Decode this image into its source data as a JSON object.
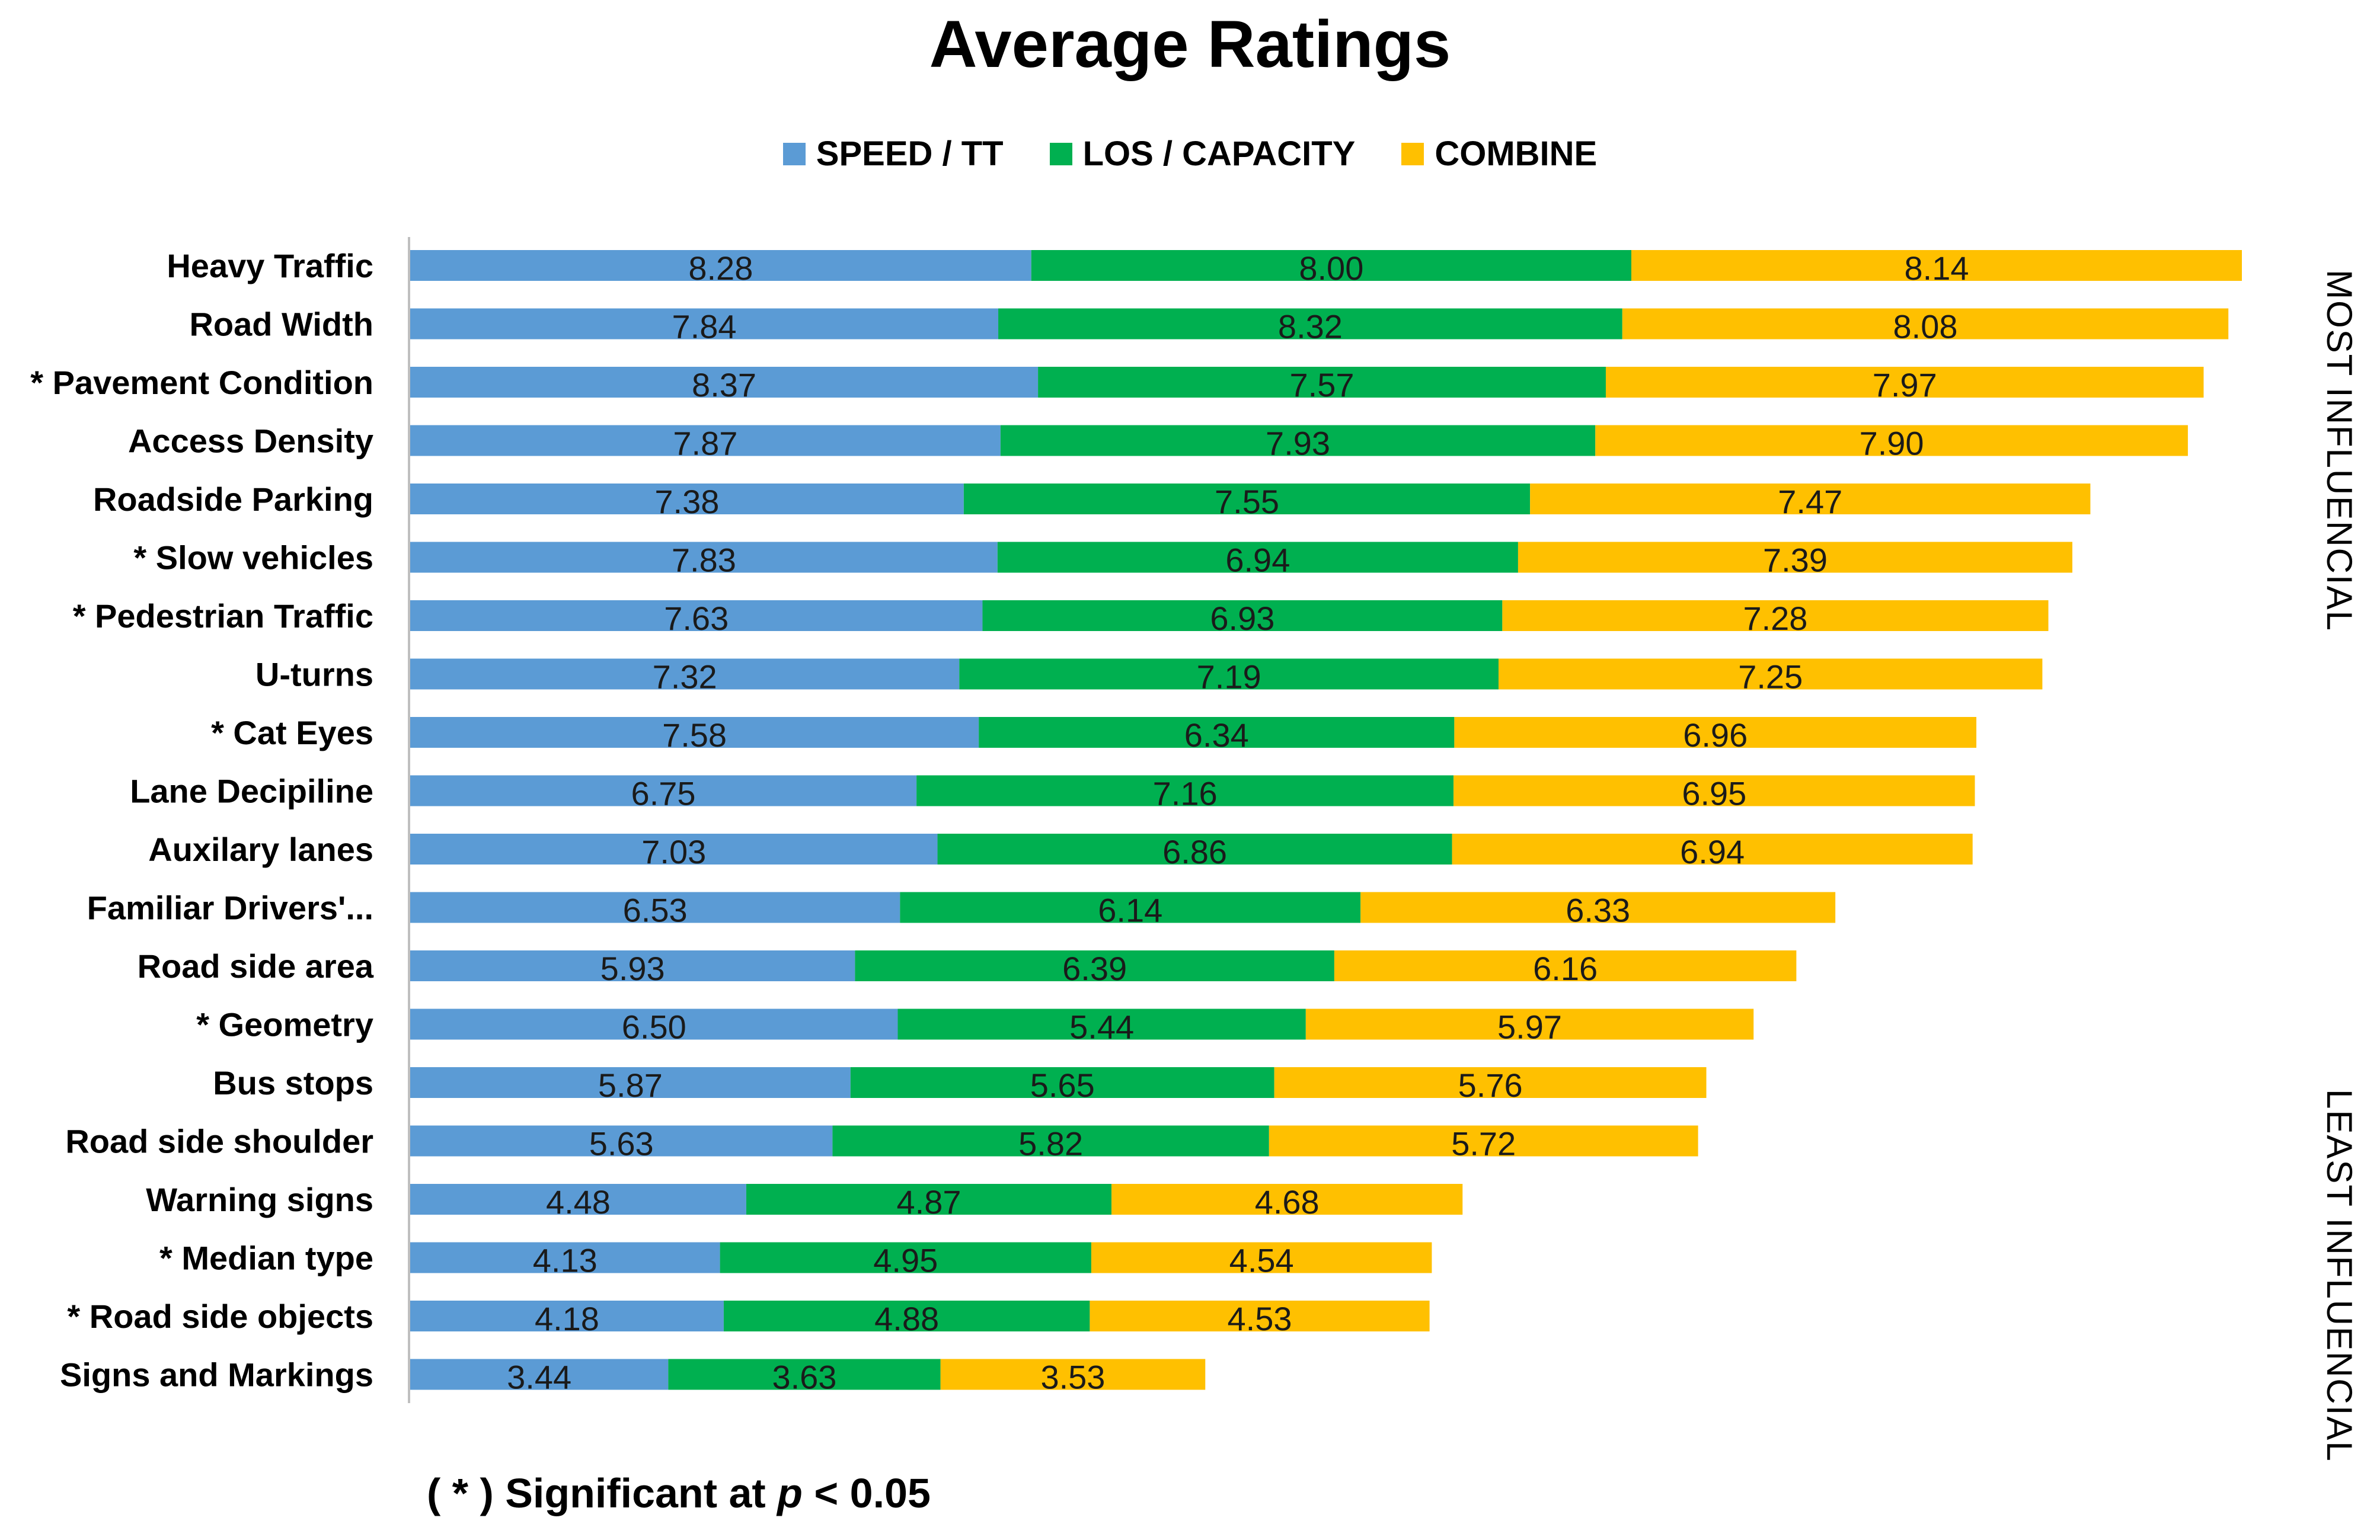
{
  "title": "Average Ratings",
  "legend": [
    {
      "label": "SPEED / TT",
      "color": "#5B9BD5"
    },
    {
      "label": "LOS / CAPACITY",
      "color": "#00B050"
    },
    {
      "label": "COMBINE",
      "color": "#FFC000"
    }
  ],
  "side_labels": {
    "top": "MOST INFLUENCIAL",
    "bottom": "LEAST INFLUENCIAL"
  },
  "footnote": {
    "prefix": "( * ) Significant at ",
    "p": "p",
    "suffix": " < 0.05"
  },
  "chart_data": {
    "type": "bar",
    "orientation": "horizontal",
    "stacked": true,
    "title": "Average Ratings",
    "categories": [
      "Heavy Traffic",
      "Road Width",
      "* Pavement Condition",
      "Access Density",
      "Roadside Parking",
      "* Slow vehicles",
      "* Pedestrian Traffic",
      "U-turns",
      "* Cat Eyes",
      "Lane Decipiline",
      "Auxilary lanes",
      "Familiar Drivers'...",
      "Road side area",
      "* Geometry",
      "Bus stops",
      "Road side shoulder",
      "Warning signs",
      "* Median type",
      "* Road side objects",
      "Signs and Markings"
    ],
    "series": [
      {
        "name": "SPEED / TT",
        "color": "#5B9BD5",
        "values": [
          "8.28",
          "7.84",
          "8.37",
          "7.87",
          "7.38",
          "7.83",
          "7.63",
          "7.32",
          "7.58",
          "6.75",
          "7.03",
          "6.53",
          "5.93",
          "6.50",
          "5.87",
          "5.63",
          "4.48",
          "4.13",
          "4.18",
          "3.44"
        ]
      },
      {
        "name": "LOS / CAPACITY",
        "color": "#00B050",
        "values": [
          "8.00",
          "8.32",
          "7.57",
          "7.93",
          "7.55",
          "6.94",
          "6.93",
          "7.19",
          "6.34",
          "7.16",
          "6.86",
          "6.14",
          "6.39",
          "5.44",
          "5.65",
          "5.82",
          "4.87",
          "4.95",
          "4.88",
          "3.63"
        ]
      },
      {
        "name": "COMBINE",
        "color": "#FFC000",
        "values": [
          "8.14",
          "8.08",
          "7.97",
          "7.90",
          "7.47",
          "7.39",
          "7.28",
          "7.25",
          "6.96",
          "6.95",
          "6.94",
          "6.33",
          "6.16",
          "5.97",
          "5.76",
          "5.72",
          "4.68",
          "4.54",
          "4.53",
          "3.53"
        ]
      }
    ],
    "xlim": [
      0,
      24.42
    ],
    "legend_position": "top",
    "grid": false
  }
}
